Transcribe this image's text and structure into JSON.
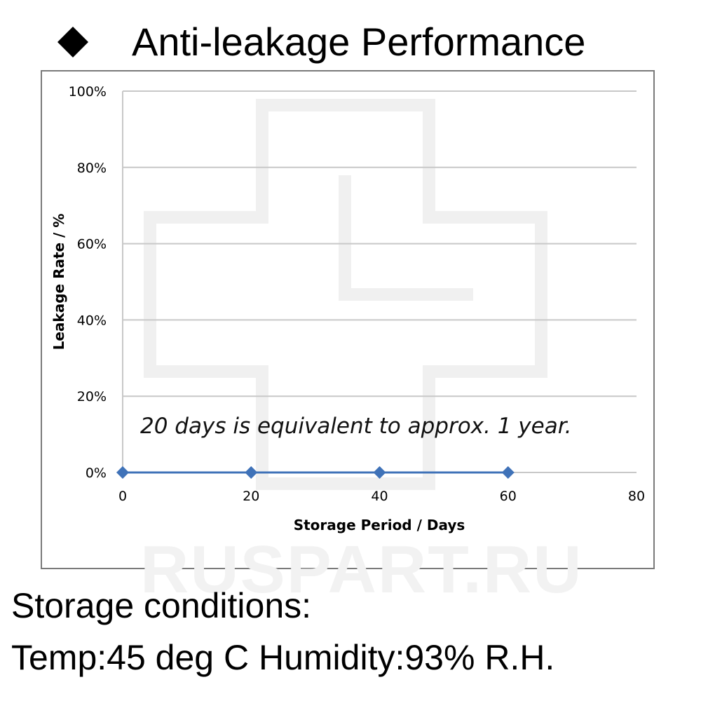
{
  "title": "Anti-leakage Performance",
  "bullet_icon": "black-diamond",
  "watermark": "RUSPART.RU",
  "chart_data": {
    "type": "line",
    "title": "Anti-leakage Performance",
    "xlabel": "Storage Period / Days",
    "ylabel": "Leakage Rate / %",
    "xlim": [
      0,
      80
    ],
    "ylim": [
      0,
      100
    ],
    "x_ticks": [
      "0",
      "20",
      "40",
      "60",
      "80"
    ],
    "y_ticks": [
      "0%",
      "20%",
      "40%",
      "60%",
      "80%",
      "100%"
    ],
    "grid": "horizontal",
    "series": [
      {
        "name": "Leakage Rate",
        "color": "#3f72b8",
        "x": [
          0,
          20,
          40,
          60
        ],
        "y": [
          0,
          0,
          0,
          0
        ]
      }
    ],
    "annotation": "20 days is equivalent to approx. 1 year."
  },
  "conditions": {
    "heading": "Storage conditions:",
    "details": "Temp:45 deg C   Humidity:93% R.H."
  }
}
